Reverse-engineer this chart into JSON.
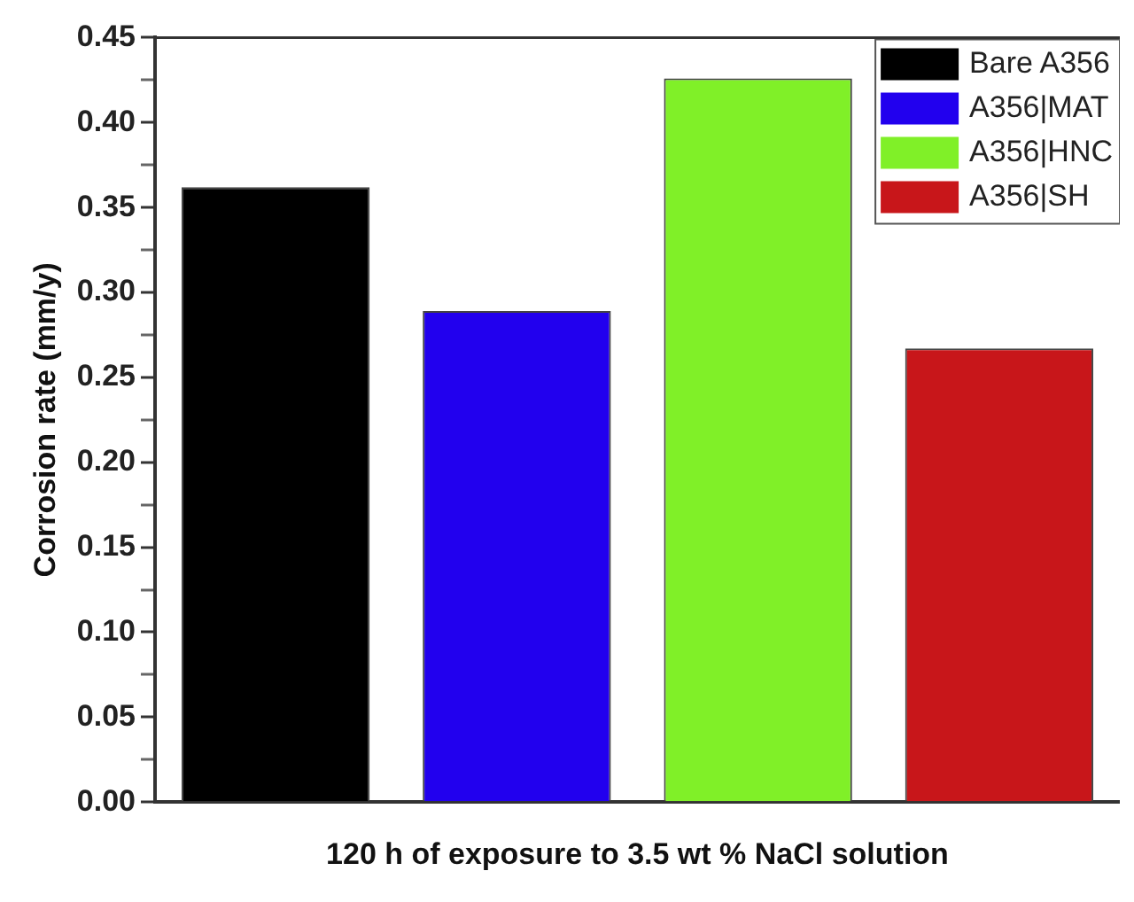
{
  "chart_data": {
    "type": "bar",
    "xlabel": "120 h of exposure to 3.5 wt % NaCl solution",
    "ylabel": "Corrosion rate (mm/y)",
    "categories": [
      null,
      null,
      null,
      null
    ],
    "series": [
      {
        "name": "Bare A356",
        "color": "#000000",
        "values": [
          0.362,
          null,
          null,
          null
        ]
      },
      {
        "name": "A356|MAT",
        "color": "#2200ee",
        "values": [
          null,
          0.289,
          null,
          null
        ]
      },
      {
        "name": "A356|HNC",
        "color": "#80f028",
        "values": [
          null,
          null,
          0.426,
          null
        ]
      },
      {
        "name": "A356|SH",
        "color": "#c8161a",
        "values": [
          null,
          null,
          null,
          0.267
        ]
      }
    ],
    "ylim": [
      0,
      0.45
    ],
    "yticks": [
      {
        "value": 0,
        "label": "0.00"
      },
      {
        "value": 0.025,
        "label": null
      },
      {
        "value": 0.05,
        "label": "0.05"
      },
      {
        "value": 0.075,
        "label": null
      },
      {
        "value": 0.1,
        "label": "0.10"
      },
      {
        "value": 0.125,
        "label": null
      },
      {
        "value": 0.15,
        "label": "0.15"
      },
      {
        "value": 0.175,
        "label": null
      },
      {
        "value": 0.2,
        "label": "0.20"
      },
      {
        "value": 0.225,
        "label": null
      },
      {
        "value": 0.25,
        "label": "0.25"
      },
      {
        "value": 0.275,
        "label": null
      },
      {
        "value": 0.3,
        "label": "0.30"
      },
      {
        "value": 0.325,
        "label": null
      },
      {
        "value": 0.35,
        "label": "0.35"
      },
      {
        "value": 0.375,
        "label": null
      },
      {
        "value": 0.4,
        "label": "0.40"
      },
      {
        "value": 0.425,
        "label": null
      },
      {
        "value": 0.45,
        "label": "0.45"
      }
    ],
    "grid": false,
    "legend": "top right"
  }
}
